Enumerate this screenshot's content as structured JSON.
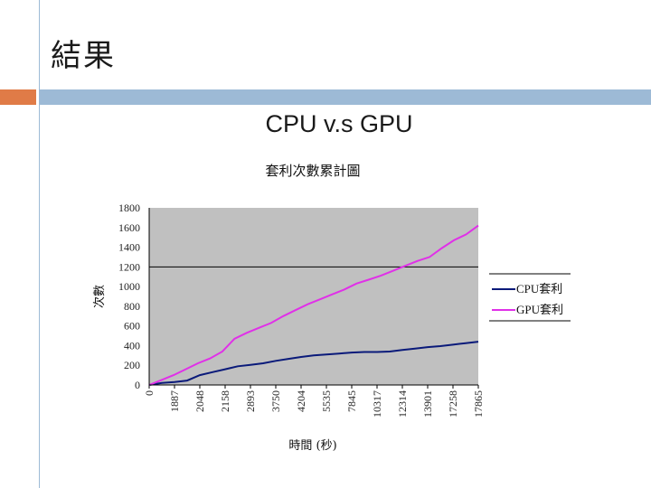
{
  "slide": {
    "title": "結果",
    "subtitle": "CPU v.s GPU"
  },
  "colors": {
    "accent_orange": "#e07b47",
    "accent_blue": "#9dbad6",
    "plot_bg": "#c0c0c0",
    "cpu": "#0a1a7a",
    "gpu": "#e030e8"
  },
  "chart_data": {
    "type": "line",
    "title": "套利次數累計圖",
    "xlabel": "時間 (秒)",
    "ylabel": "次數",
    "ylim": [
      0,
      1800
    ],
    "yticks": [
      0,
      200,
      400,
      600,
      800,
      1000,
      1200,
      1400,
      1600,
      1800
    ],
    "reference_line": 1200,
    "x_tick_labels": [
      "0",
      "1887",
      "2048",
      "2158",
      "2893",
      "3750",
      "4204",
      "5535",
      "7845",
      "10317",
      "12314",
      "13901",
      "17258",
      "17865"
    ],
    "legend_position": "right",
    "series": [
      {
        "name": "CPU套利",
        "values": [
          0,
          20,
          30,
          45,
          100,
          130,
          160,
          190,
          205,
          220,
          245,
          265,
          285,
          300,
          310,
          320,
          330,
          335,
          335,
          340,
          355,
          370,
          385,
          395,
          410,
          425,
          440
        ]
      },
      {
        "name": "GPU套利",
        "values": [
          0,
          50,
          100,
          160,
          220,
          270,
          340,
          470,
          530,
          580,
          630,
          700,
          760,
          820,
          870,
          920,
          970,
          1030,
          1070,
          1110,
          1160,
          1210,
          1260,
          1300,
          1390,
          1470,
          1530,
          1620
        ]
      }
    ]
  }
}
